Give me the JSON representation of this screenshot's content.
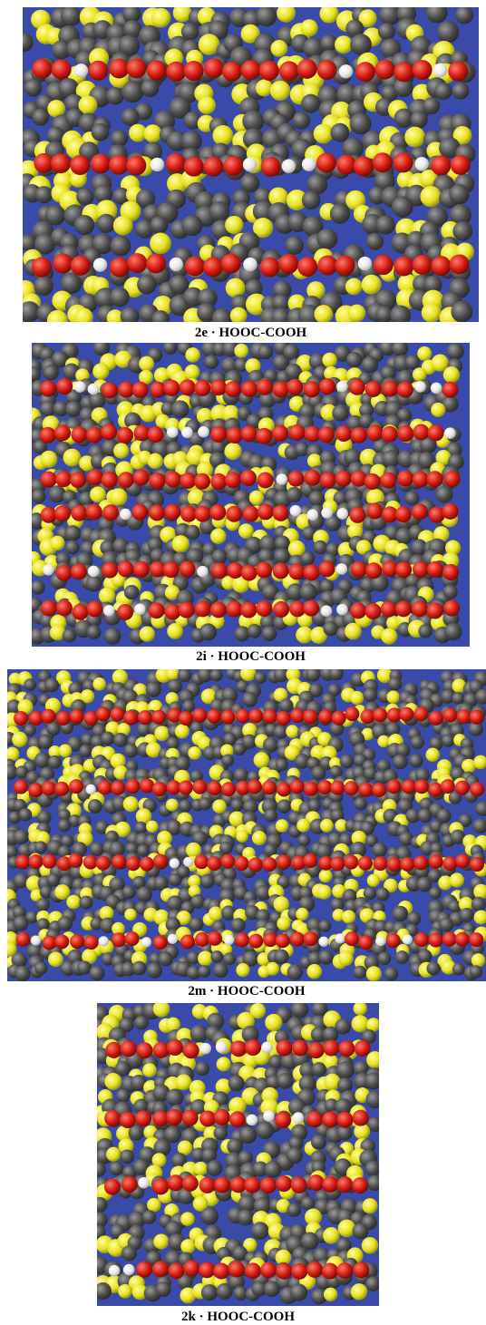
{
  "panels": [
    {
      "caption": "2e · HOOC-COOH"
    },
    {
      "caption": "2i · HOOC-COOH"
    },
    {
      "caption": "2m · HOOC-COOH"
    },
    {
      "caption": "2k · HOOC-COOH"
    }
  ]
}
